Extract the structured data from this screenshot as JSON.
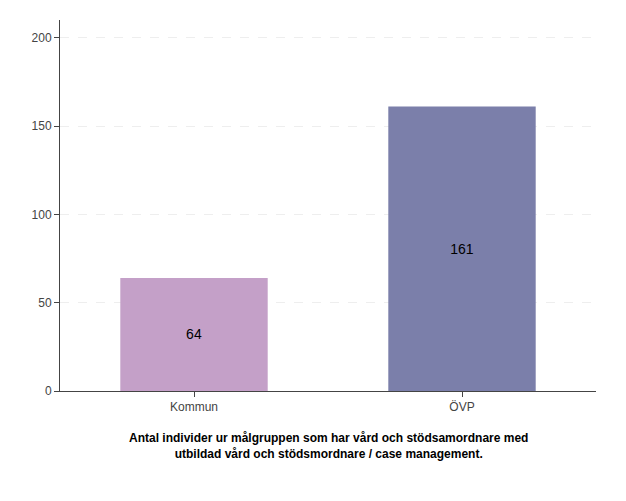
{
  "chart_data": {
    "type": "bar",
    "categories": [
      "Kommun",
      "ÖVP"
    ],
    "values": [
      64,
      161
    ],
    "colors": [
      "#c4a0c8",
      "#7b7faa"
    ],
    "ylim": [
      0,
      210
    ],
    "yticks": [
      0,
      50,
      100,
      150,
      200
    ],
    "grid": true,
    "data_labels": true,
    "annotations": [
      "Antal individer ur målgruppen som har vård och stödsamordnare med",
      "utbildad vård och stödsmordnare / case management."
    ]
  }
}
